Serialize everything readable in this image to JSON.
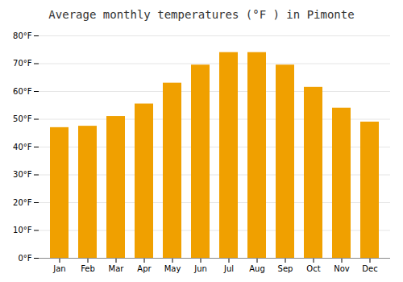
{
  "chart_data": {
    "type": "bar",
    "title": "Average monthly temperatures (°F ) in Pimonte",
    "categories": [
      "Jan",
      "Feb",
      "Mar",
      "Apr",
      "May",
      "Jun",
      "Jul",
      "Aug",
      "Sep",
      "Oct",
      "Nov",
      "Dec"
    ],
    "values": [
      47,
      47.5,
      51,
      55.5,
      63,
      69.5,
      74,
      74,
      69.5,
      61.5,
      54,
      49
    ],
    "color": "#F0A000",
    "ylim": [
      0,
      80
    ],
    "yticks": [
      {
        "value": 0,
        "label": "0°F"
      },
      {
        "value": 10,
        "label": "10°F"
      },
      {
        "value": 20,
        "label": "20°F"
      },
      {
        "value": 30,
        "label": "30°F"
      },
      {
        "value": 40,
        "label": "40°F"
      },
      {
        "value": 50,
        "label": "50°F"
      },
      {
        "value": 60,
        "label": "60°F"
      },
      {
        "value": 70,
        "label": "70°F"
      },
      {
        "value": 80,
        "label": "80°F"
      }
    ],
    "grid": true
  }
}
